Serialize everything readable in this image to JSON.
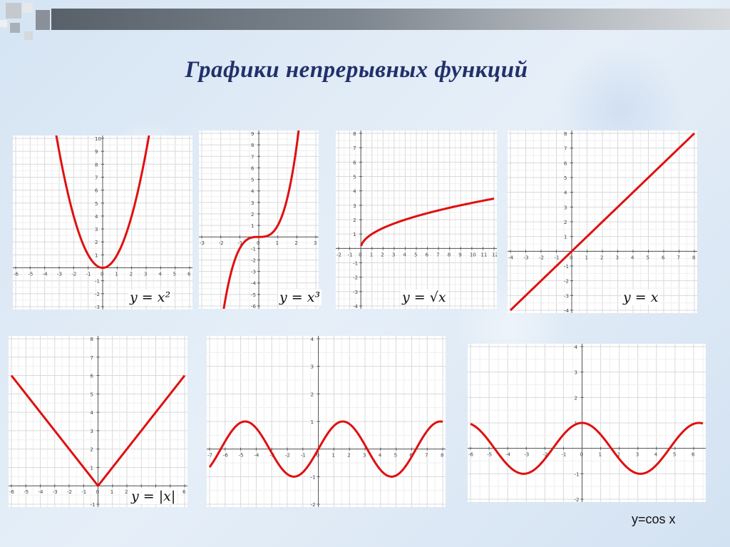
{
  "slide": {
    "title": "Графики непрерывных функций",
    "accent_color": "#22306a",
    "curve_color": "#e01010"
  },
  "chart_data": [
    {
      "id": "parabola",
      "type": "line",
      "formula": "y = x²",
      "function": "x^2",
      "xlim": [
        -6,
        6
      ],
      "ylim": [
        -3,
        10
      ],
      "x_ticks": [
        -6,
        -5,
        -4,
        -3,
        -2,
        -1,
        0,
        1,
        2,
        3,
        4,
        5,
        6
      ],
      "y_ticks": [
        -3,
        -2,
        -1,
        1,
        2,
        3,
        4,
        5,
        6,
        7,
        8,
        9,
        10
      ],
      "series": [
        {
          "points": [
            [
              -3.2,
              10.24
            ],
            [
              -2,
              4
            ],
            [
              -1,
              1
            ],
            [
              0,
              0
            ],
            [
              1,
              1
            ],
            [
              2,
              4
            ],
            [
              3.2,
              10.24
            ]
          ]
        }
      ]
    },
    {
      "id": "cubic",
      "type": "line",
      "formula": "y = x³",
      "function": "x^3",
      "xlim": [
        -3,
        3
      ],
      "ylim": [
        -6,
        9
      ],
      "x_ticks": [
        -3,
        -2,
        -1,
        0,
        1,
        2,
        3
      ],
      "y_ticks": [
        -6,
        -5,
        -4,
        -3,
        -2,
        -1,
        1,
        2,
        3,
        4,
        5,
        6,
        7,
        8,
        9
      ],
      "series": [
        {
          "points": [
            [
              -1.8,
              -5.83
            ],
            [
              -1,
              -1
            ],
            [
              0,
              0
            ],
            [
              1,
              1
            ],
            [
              2,
              8
            ],
            [
              2.1,
              9.26
            ]
          ]
        }
      ]
    },
    {
      "id": "sqrt",
      "type": "line",
      "formula": "y = √x",
      "function": "sqrt(x)",
      "xlim": [
        -2,
        12
      ],
      "ylim": [
        -4,
        8
      ],
      "x_ticks": [
        -2,
        -1,
        0,
        1,
        2,
        3,
        4,
        5,
        6,
        7,
        8,
        9,
        10,
        11,
        12
      ],
      "y_ticks": [
        -4,
        -3,
        -2,
        -1,
        1,
        2,
        3,
        4,
        5,
        6,
        7,
        8
      ],
      "series": [
        {
          "points": [
            [
              0,
              0
            ],
            [
              1,
              1
            ],
            [
              4,
              2
            ],
            [
              9,
              3
            ],
            [
              12,
              3.46
            ]
          ]
        }
      ]
    },
    {
      "id": "identity",
      "type": "line",
      "formula": "y = x",
      "function": "x",
      "xlim": [
        -4,
        8
      ],
      "ylim": [
        -4,
        8
      ],
      "x_ticks": [
        -4,
        -3,
        -2,
        -1,
        0,
        1,
        2,
        3,
        4,
        5,
        6,
        7,
        8
      ],
      "y_ticks": [
        -4,
        -3,
        -2,
        -1,
        1,
        2,
        3,
        4,
        5,
        6,
        7,
        8
      ],
      "series": [
        {
          "points": [
            [
              -4,
              -4
            ],
            [
              8,
              8
            ]
          ]
        }
      ]
    },
    {
      "id": "abs",
      "type": "line",
      "formula": "y = |x|",
      "function": "abs(x)",
      "xlim": [
        -6,
        6
      ],
      "ylim": [
        -1,
        8
      ],
      "x_ticks": [
        -6,
        -5,
        -4,
        -3,
        -2,
        -1,
        0,
        1,
        2,
        3,
        4,
        5,
        6
      ],
      "y_ticks": [
        -1,
        1,
        2,
        3,
        4,
        5,
        6,
        7,
        8
      ],
      "series": [
        {
          "points": [
            [
              -6,
              6
            ],
            [
              0,
              0
            ],
            [
              6,
              6
            ]
          ]
        }
      ]
    },
    {
      "id": "sin",
      "type": "line",
      "formula": "",
      "function": "sin(x)",
      "xlim": [
        -7,
        8
      ],
      "ylim": [
        -2,
        4
      ],
      "x_ticks": [
        -7,
        -6,
        -5,
        -4,
        -3,
        -2,
        -1,
        0,
        1,
        2,
        3,
        4,
        5,
        6,
        7,
        8
      ],
      "y_ticks": [
        -2,
        -1,
        1,
        2,
        3,
        4
      ],
      "series": [
        {
          "points": [
            [
              -7,
              -0.66
            ],
            [
              -4.71,
              1
            ],
            [
              -1.57,
              -1
            ],
            [
              0,
              0
            ],
            [
              1.57,
              1
            ],
            [
              4.71,
              -1
            ],
            [
              8,
              0.99
            ]
          ]
        }
      ]
    },
    {
      "id": "cos",
      "type": "line",
      "formula": "y=cos x",
      "function": "cos(x)",
      "xlim": [
        -6,
        6.5
      ],
      "ylim": [
        -2,
        4
      ],
      "x_ticks": [
        -6,
        -5,
        -4,
        -3,
        -2,
        -1,
        0,
        1,
        2,
        3,
        4,
        5,
        6
      ],
      "y_ticks": [
        -2,
        -1,
        1,
        2,
        3,
        4
      ],
      "series": [
        {
          "points": [
            [
              -6.28,
              1
            ],
            [
              -3.14,
              -1
            ],
            [
              0,
              1
            ],
            [
              3.14,
              -1
            ],
            [
              6.28,
              1
            ]
          ]
        }
      ]
    }
  ]
}
